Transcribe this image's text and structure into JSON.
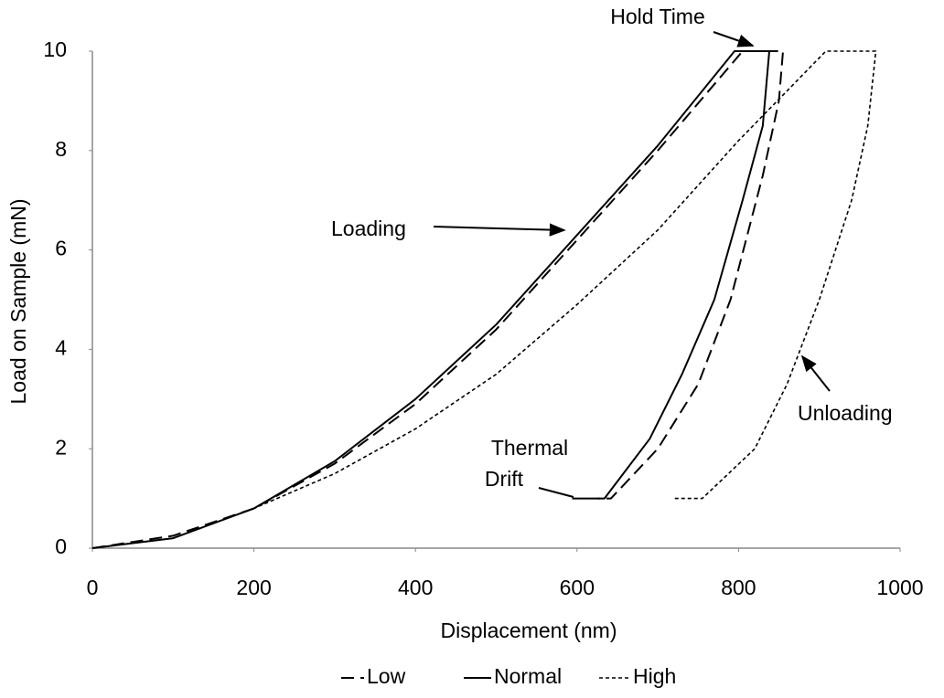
{
  "chart_data": {
    "type": "line",
    "x_label": "Displacement (nm)",
    "y_label": "Load on Sample (mN)",
    "xlim": [
      0,
      1000
    ],
    "xticks": [
      0,
      200,
      400,
      600,
      800,
      1000
    ],
    "ylim": [
      0,
      10
    ],
    "yticks": [
      0,
      2,
      4,
      6,
      8,
      10
    ],
    "grid": false,
    "legend": "bottom",
    "annotations": [
      "Hold Time",
      "Loading",
      "Thermal",
      "Drift",
      "Unloading"
    ],
    "series": [
      {
        "name": "Low",
        "color": "#000000",
        "dash": "dashed",
        "x": [
          0,
          100,
          200,
          300,
          400,
          500,
          600,
          700,
          805,
          855,
          850,
          830,
          790,
          750,
          700,
          642,
          625
        ],
        "values": [
          0,
          0.25,
          0.8,
          1.7,
          2.9,
          4.4,
          6.2,
          8.0,
          10,
          10,
          9,
          7.5,
          5,
          3.3,
          2,
          1,
          1
        ]
      },
      {
        "name": "Normal",
        "color": "#000000",
        "dash": "solid",
        "x": [
          0,
          100,
          200,
          300,
          400,
          500,
          600,
          700,
          795,
          838,
          830,
          805,
          770,
          730,
          690,
          634,
          594
        ],
        "values": [
          0,
          0.2,
          0.8,
          1.75,
          3.0,
          4.5,
          6.3,
          8.1,
          10,
          10,
          8.5,
          7,
          5,
          3.5,
          2.2,
          1,
          1
        ]
      },
      {
        "name": "High",
        "color": "#000000",
        "dash": "dotted",
        "x": [
          0,
          100,
          200,
          300,
          400,
          500,
          600,
          700,
          800,
          908,
          970,
          960,
          940,
          900,
          860,
          820,
          755,
          718
        ],
        "values": [
          0,
          0.2,
          0.8,
          1.5,
          2.4,
          3.5,
          4.9,
          6.4,
          8.2,
          10,
          10,
          8.5,
          7,
          5,
          3.3,
          2,
          1,
          1
        ]
      }
    ]
  }
}
